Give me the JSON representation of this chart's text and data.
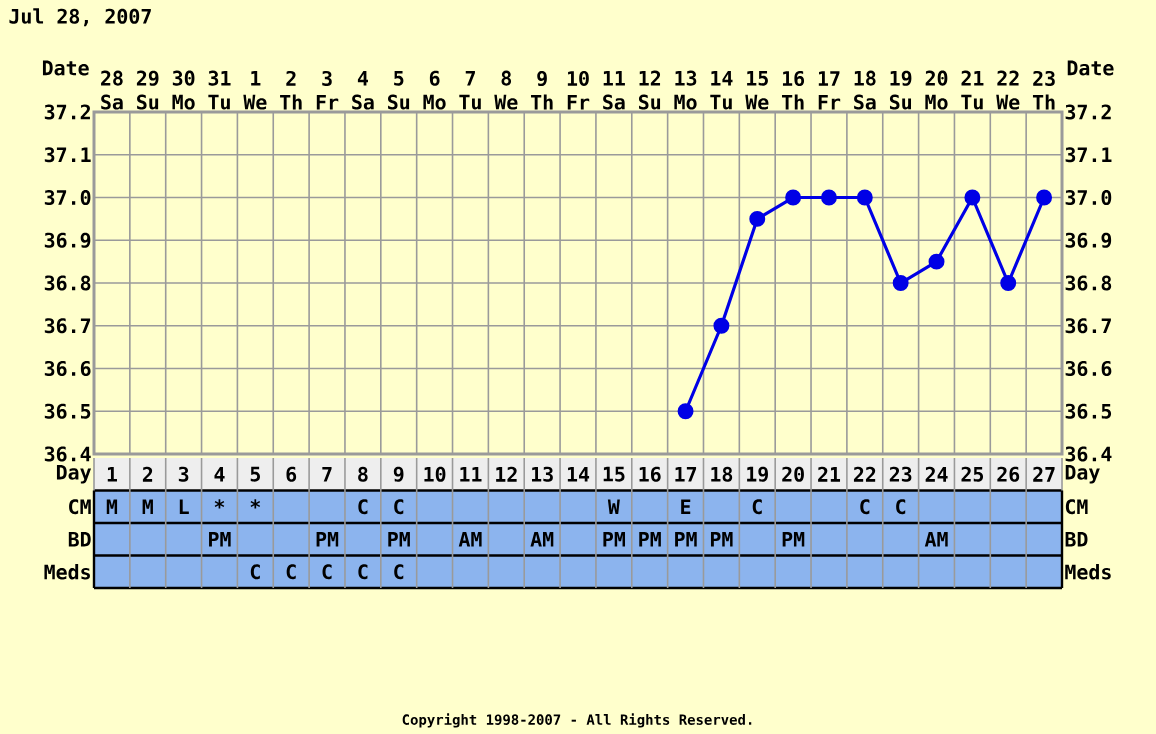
{
  "chart_data": [
    {
      "type": "line",
      "title": "Jul 28, 2007",
      "xlabel": "Date",
      "categories": [
        "28 Sa",
        "29 Su",
        "30 Mo",
        "31 Tu",
        "1 We",
        "2 Th",
        "3 Fr",
        "4 Sa",
        "5 Su",
        "6 Mo",
        "7 Tu",
        "8 We",
        "9 Th",
        "10 Fr",
        "11 Sa",
        "12 Su",
        "13 Mo",
        "14 Tu",
        "15 We",
        "16 Th",
        "17 Fr",
        "18 Sa",
        "19 Su",
        "20 Mo",
        "21 Tu",
        "22 We",
        "23 Th"
      ],
      "series": [
        {
          "color": "#0000e6",
          "values": [
            null,
            null,
            null,
            null,
            null,
            null,
            null,
            null,
            null,
            null,
            null,
            null,
            null,
            null,
            null,
            null,
            36.5,
            36.7,
            36.95,
            37.0,
            37.0,
            37.0,
            36.8,
            36.85,
            37.0,
            36.8,
            37.0
          ]
        }
      ],
      "ylim": [
        36.4,
        37.2
      ],
      "yticks": [
        {
          "value": 36.4,
          "label": "36.4"
        },
        {
          "value": 36.5,
          "label": "36.5"
        },
        {
          "value": 36.6,
          "label": "36.6"
        },
        {
          "value": 36.7,
          "label": "36.7"
        },
        {
          "value": 36.8,
          "label": "36.8"
        },
        {
          "value": 36.9,
          "label": "36.9"
        },
        {
          "value": 37.0,
          "label": "37.0"
        },
        {
          "value": 37.1,
          "label": "37.1"
        },
        {
          "value": 37.2,
          "label": "37.2"
        }
      ],
      "y2lim": [
        36.4,
        37.2
      ],
      "y2ticks": [
        {
          "value": 36.4,
          "label": "36.4"
        },
        {
          "value": 36.5,
          "label": "36.5"
        },
        {
          "value": 36.6,
          "label": "36.6"
        },
        {
          "value": 36.7,
          "label": "36.7"
        },
        {
          "value": 36.8,
          "label": "36.8"
        },
        {
          "value": 36.9,
          "label": "36.9"
        },
        {
          "value": 37.0,
          "label": "37.0"
        },
        {
          "value": 37.1,
          "label": "37.1"
        },
        {
          "value": 37.2,
          "label": "37.2"
        }
      ],
      "grid": true,
      "marker": "circle",
      "line_style": "solid",
      "annotations": [
        "Copyright 1998-2007 - All Rights Reserved."
      ]
    },
    {
      "type": "heatmap",
      "xlabel": "Day",
      "categories": [
        "1",
        "2",
        "3",
        "4",
        "5",
        "6",
        "7",
        "8",
        "9",
        "10",
        "11",
        "12",
        "13",
        "14",
        "15",
        "16",
        "17",
        "18",
        "19",
        "20",
        "21",
        "22",
        "23",
        "24",
        "25",
        "26",
        "27"
      ],
      "y_categories": [
        "CM",
        "BD",
        "Meds"
      ],
      "y2_categories": [
        "CM",
        "BD",
        "Meds"
      ],
      "cells": [
        [
          null,
          null,
          null,
          null,
          null,
          null,
          null,
          null,
          null,
          null,
          null,
          null,
          null,
          null,
          null,
          null,
          null,
          null,
          null,
          null,
          null,
          null,
          null,
          null,
          null,
          null,
          null
        ],
        [
          null,
          null,
          null,
          null,
          null,
          null,
          null,
          null,
          null,
          null,
          null,
          null,
          null,
          null,
          null,
          null,
          null,
          null,
          null,
          null,
          null,
          null,
          null,
          null,
          null,
          null,
          null
        ],
        [
          null,
          null,
          null,
          null,
          null,
          null,
          null,
          null,
          null,
          null,
          null,
          null,
          null,
          null,
          null,
          null,
          null,
          null,
          null,
          null,
          null,
          null,
          null,
          null,
          null,
          null,
          null
        ]
      ],
      "cell_labels": [
        [
          "M",
          "M",
          "L",
          "*",
          "*",
          null,
          null,
          "C",
          "C",
          null,
          null,
          null,
          null,
          null,
          "W",
          null,
          "E",
          null,
          "C",
          null,
          null,
          "C",
          "C",
          null,
          null,
          null,
          null
        ],
        [
          null,
          null,
          null,
          "PM",
          null,
          null,
          "PM",
          null,
          "PM",
          null,
          "AM",
          null,
          "AM",
          null,
          "PM",
          "PM",
          "PM",
          "PM",
          null,
          "PM",
          null,
          null,
          null,
          "AM",
          null,
          null,
          null
        ],
        [
          null,
          null,
          null,
          null,
          "C",
          "C",
          "C",
          "C",
          "C",
          null,
          null,
          null,
          null,
          null,
          null,
          null,
          null,
          null,
          null,
          null,
          null,
          null,
          null,
          null,
          null,
          null,
          null
        ]
      ]
    }
  ]
}
